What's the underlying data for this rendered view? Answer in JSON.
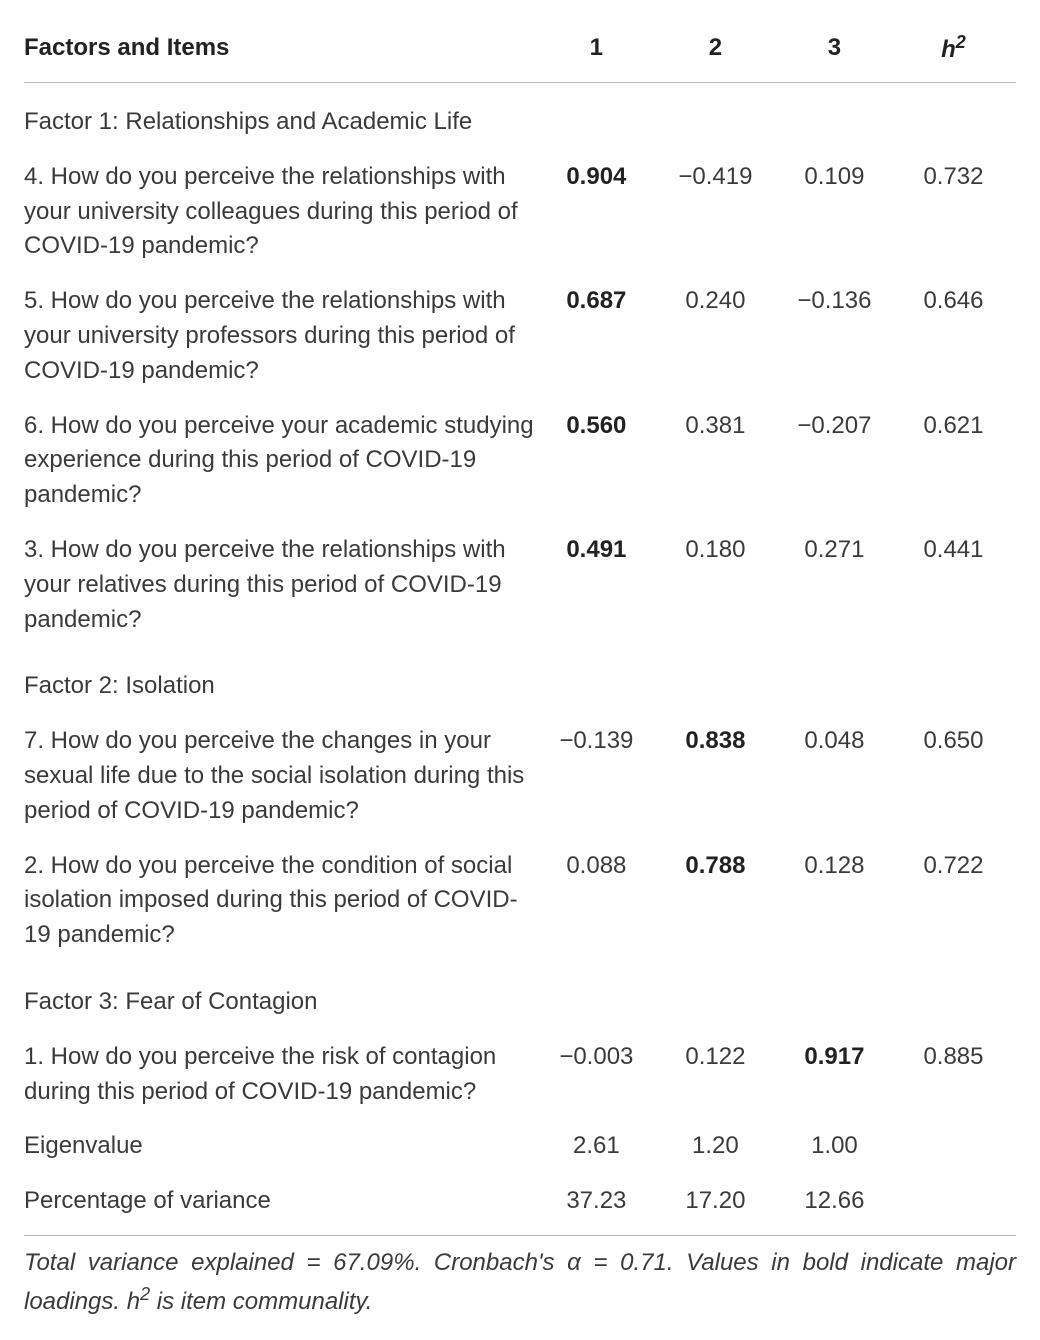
{
  "columns": {
    "label": "Factors and Items",
    "c1": "1",
    "c2": "2",
    "c3": "3",
    "h2_prefix": "h",
    "h2_sup": "2"
  },
  "rows": [
    {
      "type": "section",
      "label": "Factor 1: Relationships and Academic Life"
    },
    {
      "type": "item",
      "label": "4. How do you perceive the relationships with your university colleagues during this period of COVID-19 pandemic?",
      "v1": "0.904",
      "v2": "−0.419",
      "v3": "0.109",
      "h2": "0.732",
      "bold": 1
    },
    {
      "type": "item",
      "label": "5. How do you perceive the relationships with your university professors during this period of COVID-19 pandemic?",
      "v1": "0.687",
      "v2": "0.240",
      "v3": "−0.136",
      "h2": "0.646",
      "bold": 1
    },
    {
      "type": "item",
      "label": "6. How do you perceive your academic studying experience during this period of COVID-19 pandemic?",
      "v1": "0.560",
      "v2": "0.381",
      "v3": "−0.207",
      "h2": "0.621",
      "bold": 1
    },
    {
      "type": "item",
      "label": "3. How do you perceive the relationships with your relatives during this period of COVID-19 pandemic?",
      "v1": "0.491",
      "v2": "0.180",
      "v3": "0.271",
      "h2": "0.441",
      "bold": 1
    },
    {
      "type": "section",
      "label": "Factor 2: Isolation"
    },
    {
      "type": "item",
      "label": "7. How do you perceive the changes in your sexual life due to the social isolation during this period of COVID-19 pandemic?",
      "v1": "−0.139",
      "v2": "0.838",
      "v3": "0.048",
      "h2": "0.650",
      "bold": 2
    },
    {
      "type": "item",
      "label": "2. How do you perceive the condition of social isolation imposed during this period of COVID-19 pandemic?",
      "v1": "0.088",
      "v2": "0.788",
      "v3": "0.128",
      "h2": "0.722",
      "bold": 2
    },
    {
      "type": "section",
      "label": "Factor 3: Fear of Contagion"
    },
    {
      "type": "item",
      "label": "1. How do you perceive the risk of contagion during this period of COVID-19 pandemic?",
      "v1": "−0.003",
      "v2": "0.122",
      "v3": "0.917",
      "h2": "0.885",
      "bold": 3
    },
    {
      "type": "stat",
      "label": "Eigenvalue",
      "v1": "2.61",
      "v2": "1.20",
      "v3": "1.00",
      "h2": ""
    },
    {
      "type": "stat",
      "label": "Percentage of variance",
      "v1": "37.23",
      "v2": "17.20",
      "v3": "12.66",
      "h2": "",
      "last": true
    }
  ],
  "footnote": {
    "a": "Total variance explained = 67.09%. Cronbach's α = 0.71. Values in bold indicate major loadings. h",
    "sup": "2",
    "b": " is item communality."
  }
}
